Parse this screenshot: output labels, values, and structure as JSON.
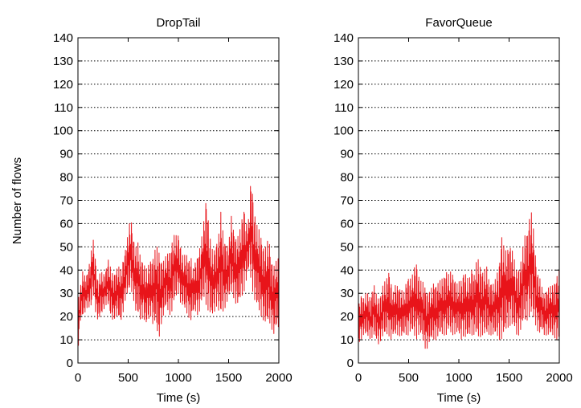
{
  "figure": {
    "shared_ylabel": "Number of flows"
  },
  "chart_data": [
    {
      "type": "line",
      "title": "DropTail",
      "xlabel": "Time (s)",
      "ylabel": "Number of flows",
      "xlim": [
        0,
        2000
      ],
      "ylim": [
        0,
        140
      ],
      "xticks": [
        0,
        500,
        1000,
        1500,
        2000
      ],
      "yticks": [
        0,
        10,
        20,
        30,
        40,
        50,
        60,
        70,
        80,
        90,
        100,
        110,
        120,
        130,
        140
      ],
      "grid": "horizontal dotted",
      "series_color": "#e8141a",
      "sample_interval_s": 25,
      "series": [
        {
          "x": [
            0,
            25,
            50,
            75,
            100,
            125,
            150,
            175,
            200,
            225,
            250,
            275,
            300,
            325,
            350,
            375,
            400,
            425,
            450,
            475,
            500,
            525,
            550,
            575,
            600,
            625,
            650,
            675,
            700,
            725,
            750,
            775,
            800,
            825,
            850,
            875,
            900,
            925,
            950,
            975,
            1000,
            1025,
            1050,
            1075,
            1100,
            1125,
            1150,
            1175,
            1200,
            1225,
            1250,
            1275,
            1300,
            1325,
            1350,
            1375,
            1400,
            1425,
            1450,
            1475,
            1500,
            1525,
            1550,
            1575,
            1600,
            1625,
            1650,
            1675,
            1700,
            1725,
            1750,
            1775,
            1800,
            1825,
            1850,
            1875,
            1900,
            1925,
            1950,
            1975,
            2000
          ],
          "low": [
            5,
            18,
            20,
            22,
            25,
            22,
            30,
            22,
            18,
            20,
            22,
            25,
            25,
            20,
            18,
            20,
            20,
            17,
            22,
            28,
            30,
            32,
            28,
            22,
            20,
            18,
            20,
            16,
            18,
            20,
            16,
            18,
            8,
            16,
            20,
            24,
            22,
            20,
            25,
            28,
            30,
            25,
            24,
            22,
            20,
            18,
            22,
            22,
            20,
            25,
            28,
            25,
            22,
            20,
            20,
            25,
            22,
            20,
            22,
            25,
            28,
            30,
            28,
            25,
            25,
            28,
            30,
            35,
            40,
            35,
            28,
            25,
            22,
            20,
            18,
            16,
            18,
            15,
            12,
            15,
            15
          ],
          "high": [
            28,
            33,
            40,
            37,
            40,
            46,
            54,
            45,
            35,
            40,
            38,
            40,
            45,
            41,
            38,
            40,
            42,
            40,
            45,
            50,
            56,
            64,
            55,
            50,
            52,
            45,
            45,
            40,
            42,
            45,
            46,
            50,
            50,
            45,
            44,
            46,
            48,
            50,
            55,
            55,
            56,
            50,
            45,
            48,
            45,
            46,
            40,
            45,
            48,
            52,
            60,
            72,
            62,
            50,
            48,
            52,
            55,
            66,
            54,
            52,
            50,
            64,
            58,
            54,
            55,
            60,
            69,
            60,
            62,
            83,
            68,
            60,
            58,
            55,
            50,
            50,
            55,
            45,
            42,
            44,
            46
          ]
        }
      ]
    },
    {
      "type": "line",
      "title": "FavorQueue",
      "xlabel": "Time (s)",
      "ylabel": "",
      "xlim": [
        0,
        2000
      ],
      "ylim": [
        0,
        140
      ],
      "xticks": [
        0,
        500,
        1000,
        1500,
        2000
      ],
      "yticks": [
        0,
        10,
        20,
        30,
        40,
        50,
        60,
        70,
        80,
        90,
        100,
        110,
        120,
        130,
        140
      ],
      "grid": "horizontal dotted",
      "series_color": "#e8141a",
      "sample_interval_s": 25,
      "series": [
        {
          "x": [
            0,
            25,
            50,
            75,
            100,
            125,
            150,
            175,
            200,
            225,
            250,
            275,
            300,
            325,
            350,
            375,
            400,
            425,
            450,
            475,
            500,
            525,
            550,
            575,
            600,
            625,
            650,
            675,
            700,
            725,
            750,
            775,
            800,
            825,
            850,
            875,
            900,
            925,
            950,
            975,
            1000,
            1025,
            1050,
            1075,
            1100,
            1125,
            1150,
            1175,
            1200,
            1225,
            1250,
            1275,
            1300,
            1325,
            1350,
            1375,
            1400,
            1425,
            1450,
            1475,
            1500,
            1525,
            1550,
            1575,
            1600,
            1625,
            1650,
            1675,
            1700,
            1725,
            1750,
            1775,
            1800,
            1825,
            1850,
            1875,
            1900,
            1925,
            1950,
            1975,
            2000
          ],
          "low": [
            8,
            10,
            12,
            12,
            11,
            10,
            12,
            10,
            8,
            10,
            12,
            12,
            12,
            10,
            12,
            12,
            12,
            11,
            12,
            12,
            12,
            14,
            12,
            10,
            12,
            12,
            8,
            5,
            8,
            10,
            10,
            10,
            12,
            12,
            12,
            12,
            14,
            12,
            12,
            13,
            12,
            10,
            12,
            10,
            12,
            12,
            12,
            12,
            10,
            12,
            12,
            12,
            12,
            12,
            12,
            12,
            10,
            10,
            12,
            14,
            16,
            16,
            15,
            12,
            12,
            15,
            18,
            18,
            20,
            20,
            18,
            15,
            12,
            14,
            12,
            12,
            12,
            12,
            11,
            10,
            10
          ],
          "high": [
            24,
            30,
            28,
            30,
            30,
            28,
            35,
            30,
            28,
            30,
            35,
            35,
            41,
            35,
            30,
            35,
            33,
            32,
            30,
            35,
            38,
            36,
            40,
            45,
            38,
            35,
            35,
            32,
            30,
            32,
            35,
            34,
            35,
            36,
            38,
            40,
            38,
            40,
            38,
            34,
            35,
            36,
            40,
            38,
            35,
            42,
            38,
            44,
            45,
            40,
            40,
            42,
            36,
            35,
            34,
            38,
            42,
            56,
            50,
            48,
            52,
            50,
            45,
            40,
            42,
            45,
            55,
            56,
            63,
            65,
            55,
            40,
            38,
            33,
            30,
            32,
            33,
            33,
            35,
            38,
            40
          ]
        }
      ]
    }
  ]
}
